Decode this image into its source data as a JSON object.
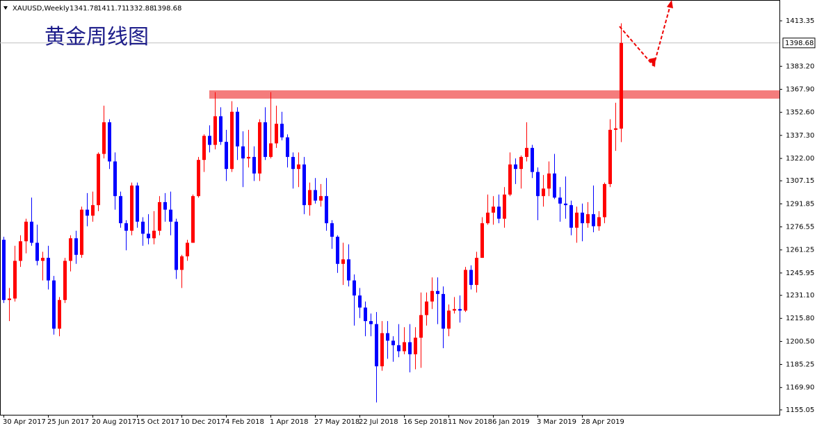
{
  "chart_data": {
    "type": "candlestick",
    "symbol": "XAUUSD,Weekly",
    "annotation": "黄金周线图",
    "categories": [
      "30 Apr 2017",
      null,
      null,
      null,
      null,
      null,
      null,
      null,
      "25 Jun 2017",
      null,
      null,
      null,
      null,
      null,
      null,
      null,
      "20 Aug 2017",
      null,
      null,
      null,
      null,
      null,
      null,
      null,
      "15 Oct 2017",
      null,
      null,
      null,
      null,
      null,
      null,
      null,
      "10 Dec 2017",
      null,
      null,
      null,
      null,
      null,
      null,
      null,
      "4 Feb 2018",
      null,
      null,
      null,
      null,
      null,
      null,
      null,
      "1 Apr 2018",
      null,
      null,
      null,
      null,
      null,
      null,
      null,
      "27 May 2018",
      null,
      null,
      null,
      null,
      null,
      null,
      null,
      "22 Jul 2018",
      null,
      null,
      null,
      null,
      null,
      null,
      null,
      "16 Sep 2018",
      null,
      null,
      null,
      null,
      null,
      null,
      null,
      "11 Nov 2018",
      null,
      null,
      null,
      null,
      null,
      null,
      null,
      "6 Jan 2019",
      null,
      null,
      null,
      null,
      null,
      null,
      null,
      "3 Mar 2019",
      null,
      null,
      null,
      null,
      null,
      null,
      null,
      "28 Apr 2019",
      null,
      null,
      null,
      null,
      null,
      null,
      null
    ],
    "open": [
      1268,
      1228,
      1229,
      1254,
      1267,
      1280,
      1266,
      1254,
      1256,
      1241,
      1209,
      1228,
      1254,
      1269,
      1258,
      1288,
      1284,
      1291,
      1325,
      1346,
      1320,
      1297,
      1279,
      1274,
      1304,
      1280,
      1272,
      1269,
      1274,
      1293,
      1288,
      1280,
      1248,
      1257,
      1266,
      1297,
      1321,
      1337,
      1331,
      1350,
      1333,
      1315,
      1353,
      1330,
      1322,
      1323,
      1312,
      1346,
      1323,
      1332,
      1345,
      1336,
      1323,
      1315,
      1318,
      1291,
      1301,
      1294,
      1297,
      1279,
      1270,
      1252,
      1255,
      1241,
      1231,
      1223,
      1214,
      1212,
      1184,
      1206,
      1201,
      1198,
      1194,
      1200,
      1192,
      1203,
      1218,
      1227,
      1234,
      1232,
      1209,
      1221,
      1222,
      1221,
      1248,
      1238,
      1256,
      1279,
      1286,
      1290,
      1282,
      1298,
      1318,
      1315,
      1323,
      1329,
      1313,
      1297,
      1302,
      1312,
      1296,
      1292,
      1291,
      1276,
      1286,
      1279,
      1285,
      1277,
      1283,
      1305,
      1341,
      1341.78
    ],
    "high": [
      1270,
      1236,
      1264,
      1271,
      1282,
      1296,
      1278,
      1260,
      1264,
      1244,
      1230,
      1256,
      1271,
      1274,
      1290,
      1299,
      1300,
      1326,
      1357,
      1348,
      1326,
      1300,
      1281,
      1306,
      1306,
      1283,
      1285,
      1287,
      1297,
      1299,
      1300,
      1282,
      1258,
      1268,
      1298,
      1323,
      1338,
      1344,
      1366,
      1356,
      1341,
      1360,
      1356,
      1340,
      1341,
      1330,
      1348,
      1356,
      1366,
      1357,
      1353,
      1338,
      1326,
      1326,
      1323,
      1306,
      1309,
      1305,
      1309,
      1281,
      1271,
      1266,
      1265,
      1245,
      1236,
      1227,
      1219,
      1220,
      1214,
      1214,
      1204,
      1212,
      1210,
      1212,
      1210,
      1233,
      1233,
      1243,
      1243,
      1237,
      1225,
      1230,
      1231,
      1250,
      1251,
      1260,
      1283,
      1298,
      1297,
      1298,
      1303,
      1326,
      1322,
      1324,
      1346,
      1331,
      1316,
      1311,
      1320,
      1325,
      1303,
      1310,
      1294,
      1290,
      1292,
      1293,
      1304,
      1287,
      1306,
      1348,
      1359,
      1411.71
    ],
    "low": [
      1226,
      1214,
      1227,
      1250,
      1259,
      1264,
      1251,
      1241,
      1235,
      1205,
      1204,
      1226,
      1247,
      1252,
      1256,
      1277,
      1280,
      1287,
      1322,
      1315,
      1288,
      1276,
      1261,
      1271,
      1276,
      1264,
      1265,
      1265,
      1271,
      1280,
      1271,
      1242,
      1236,
      1254,
      1266,
      1296,
      1313,
      1326,
      1328,
      1331,
      1307,
      1313,
      1321,
      1303,
      1316,
      1307,
      1307,
      1321,
      1322,
      1329,
      1334,
      1316,
      1302,
      1303,
      1285,
      1284,
      1292,
      1290,
      1274,
      1262,
      1246,
      1238,
      1237,
      1211,
      1216,
      1204,
      1204,
      1160,
      1181,
      1189,
      1187,
      1190,
      1192,
      1180,
      1182,
      1183,
      1211,
      1222,
      1212,
      1196,
      1204,
      1219,
      1213,
      1220,
      1235,
      1233,
      1256,
      1278,
      1278,
      1279,
      1276,
      1297,
      1305,
      1302,
      1320,
      1309,
      1281,
      1290,
      1297,
      1295,
      1280,
      1282,
      1271,
      1266,
      1267,
      1276,
      1273,
      1274,
      1279,
      1303,
      1327,
      1332.88
    ],
    "close": [
      1228,
      1229,
      1254,
      1267,
      1280,
      1266,
      1254,
      1256,
      1241,
      1209,
      1228,
      1254,
      1269,
      1258,
      1288,
      1284,
      1291,
      1325,
      1346,
      1320,
      1297,
      1279,
      1274,
      1304,
      1280,
      1272,
      1269,
      1274,
      1293,
      1288,
      1280,
      1248,
      1257,
      1266,
      1297,
      1321,
      1337,
      1331,
      1350,
      1333,
      1315,
      1353,
      1330,
      1322,
      1323,
      1312,
      1346,
      1323,
      1332,
      1345,
      1336,
      1323,
      1315,
      1318,
      1291,
      1301,
      1294,
      1297,
      1279,
      1270,
      1252,
      1255,
      1241,
      1231,
      1223,
      1214,
      1212,
      1184,
      1206,
      1201,
      1198,
      1194,
      1200,
      1192,
      1203,
      1218,
      1227,
      1234,
      1232,
      1209,
      1221,
      1222,
      1221,
      1248,
      1238,
      1256,
      1279,
      1286,
      1290,
      1282,
      1298,
      1318,
      1315,
      1323,
      1329,
      1313,
      1297,
      1302,
      1312,
      1296,
      1292,
      1291,
      1276,
      1286,
      1279,
      1285,
      1277,
      1283,
      1305,
      1341,
      1342,
      1398.68
    ],
    "up_color": "#ff0000",
    "down_color": "#0000ff",
    "ylim": [
      1151.79,
      1427.19
    ],
    "yticks": [
      1155.05,
      {
        "value": 1169.9,
        "label": "1169.90"
      },
      1185.25,
      {
        "value": 1200.5,
        "label": "1200.50"
      },
      {
        "value": 1215.8,
        "label": "1215.80"
      },
      {
        "value": 1231.1,
        "label": "1231.10"
      },
      1245.95,
      1261.25,
      1276.55,
      1291.85,
      1307.15,
      {
        "value": 1322,
        "label": "1322.00"
      },
      {
        "value": 1337.3,
        "label": "1337.30"
      },
      {
        "value": 1352.6,
        "label": "1352.60"
      },
      {
        "value": 1367.9,
        "label": "1367.90"
      },
      {
        "value": 1383.2,
        "label": "1383.20"
      },
      1413.35
    ],
    "resistance_zone": {
      "low": 1361.7,
      "high": 1367.2,
      "color": "#f47c7c"
    }
  }
}
